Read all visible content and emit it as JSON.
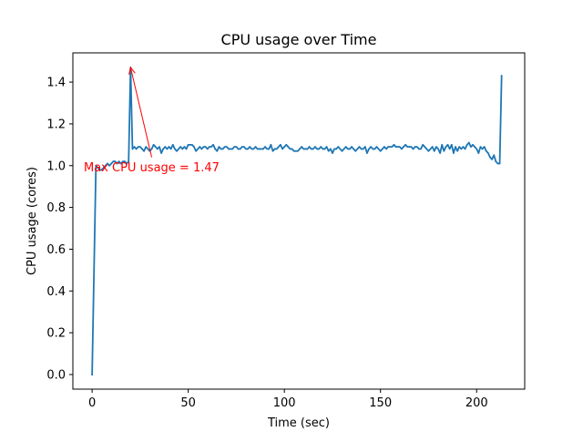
{
  "chart_data": {
    "type": "line",
    "title": "CPU usage over Time",
    "xlabel": "Time (sec)",
    "ylabel": "CPU usage (cores)",
    "xlim": [
      -10,
      225
    ],
    "ylim": [
      -0.07,
      1.54
    ],
    "xticks": [
      0,
      50,
      100,
      150,
      200
    ],
    "xtick_labels": [
      "0",
      "50",
      "100",
      "150",
      "200"
    ],
    "yticks": [
      0.0,
      0.2,
      0.4,
      0.6,
      0.8,
      1.0,
      1.2,
      1.4
    ],
    "ytick_labels": [
      "0.0",
      "0.2",
      "0.4",
      "0.6",
      "0.8",
      "1.0",
      "1.2",
      "1.4"
    ],
    "grid": false,
    "series_color": "#1f77b4",
    "annotation": {
      "text": "Max CPU usage = 1.47",
      "color": "#ff0000",
      "point": [
        20,
        1.47
      ],
      "text_anchor_xy": [
        31,
        1.04
      ]
    },
    "series": [
      {
        "x": [
          0,
          1,
          2,
          3,
          4,
          5,
          6,
          7,
          8,
          9,
          10,
          11,
          12,
          13,
          14,
          15,
          16,
          17,
          18,
          19,
          20,
          21,
          22,
          23,
          24,
          25,
          26,
          27,
          28,
          29,
          30,
          31,
          32,
          33,
          34,
          35,
          36,
          37,
          38,
          39,
          40,
          41,
          42,
          43,
          44,
          45,
          46,
          47,
          48,
          49,
          50,
          51,
          52,
          53,
          54,
          55,
          56,
          57,
          58,
          59,
          60,
          61,
          62,
          63,
          64,
          65,
          66,
          67,
          68,
          69,
          70,
          71,
          72,
          73,
          74,
          75,
          76,
          77,
          78,
          79,
          80,
          81,
          82,
          83,
          84,
          85,
          86,
          87,
          88,
          89,
          90,
          91,
          92,
          93,
          94,
          95,
          96,
          97,
          98,
          99,
          100,
          101,
          102,
          103,
          104,
          105,
          106,
          107,
          108,
          109,
          110,
          111,
          112,
          113,
          114,
          115,
          116,
          117,
          118,
          119,
          120,
          121,
          122,
          123,
          124,
          125,
          126,
          127,
          128,
          129,
          130,
          131,
          132,
          133,
          134,
          135,
          136,
          137,
          138,
          139,
          140,
          141,
          142,
          143,
          144,
          145,
          146,
          147,
          148,
          149,
          150,
          151,
          152,
          153,
          154,
          155,
          156,
          157,
          158,
          159,
          160,
          161,
          162,
          163,
          164,
          165,
          166,
          167,
          168,
          169,
          170,
          171,
          172,
          173,
          174,
          175,
          176,
          177,
          178,
          179,
          180,
          181,
          182,
          183,
          184,
          185,
          186,
          187,
          188,
          189,
          190,
          191,
          192,
          193,
          194,
          195,
          196,
          197,
          198,
          199,
          200,
          201,
          202,
          203,
          204,
          205,
          206,
          207,
          208,
          209,
          210,
          211,
          212,
          213
        ],
        "y": [
          0.0,
          0.5,
          1.0,
          0.99,
          0.98,
          0.98,
          0.99,
          1.0,
          1.01,
          1.0,
          1.01,
          1.02,
          1.02,
          1.01,
          1.02,
          1.01,
          1.02,
          1.02,
          1.01,
          1.02,
          1.47,
          1.08,
          1.09,
          1.08,
          1.09,
          1.09,
          1.08,
          1.07,
          1.09,
          1.08,
          1.07,
          1.08,
          1.1,
          1.09,
          1.08,
          1.09,
          1.06,
          1.08,
          1.09,
          1.08,
          1.09,
          1.08,
          1.1,
          1.08,
          1.07,
          1.08,
          1.09,
          1.08,
          1.09,
          1.08,
          1.1,
          1.1,
          1.1,
          1.09,
          1.07,
          1.08,
          1.09,
          1.08,
          1.09,
          1.09,
          1.08,
          1.09,
          1.09,
          1.1,
          1.08,
          1.07,
          1.09,
          1.08,
          1.08,
          1.09,
          1.09,
          1.08,
          1.08,
          1.08,
          1.09,
          1.09,
          1.08,
          1.08,
          1.09,
          1.09,
          1.08,
          1.08,
          1.09,
          1.08,
          1.08,
          1.09,
          1.08,
          1.08,
          1.08,
          1.08,
          1.09,
          1.08,
          1.08,
          1.1,
          1.07,
          1.08,
          1.08,
          1.09,
          1.1,
          1.08,
          1.09,
          1.1,
          1.09,
          1.08,
          1.08,
          1.07,
          1.07,
          1.07,
          1.08,
          1.09,
          1.08,
          1.08,
          1.08,
          1.09,
          1.08,
          1.08,
          1.09,
          1.08,
          1.08,
          1.09,
          1.08,
          1.08,
          1.09,
          1.07,
          1.08,
          1.06,
          1.08,
          1.08,
          1.09,
          1.08,
          1.07,
          1.08,
          1.09,
          1.08,
          1.08,
          1.09,
          1.08,
          1.07,
          1.08,
          1.09,
          1.08,
          1.08,
          1.09,
          1.06,
          1.08,
          1.09,
          1.08,
          1.08,
          1.09,
          1.08,
          1.07,
          1.08,
          1.09,
          1.08,
          1.09,
          1.09,
          1.09,
          1.1,
          1.09,
          1.09,
          1.09,
          1.08,
          1.09,
          1.1,
          1.09,
          1.09,
          1.09,
          1.08,
          1.09,
          1.09,
          1.08,
          1.08,
          1.1,
          1.09,
          1.08,
          1.07,
          1.08,
          1.09,
          1.07,
          1.09,
          1.08,
          1.06,
          1.1,
          1.07,
          1.09,
          1.1,
          1.08,
          1.1,
          1.06,
          1.09,
          1.07,
          1.09,
          1.08,
          1.09,
          1.08,
          1.1,
          1.11,
          1.09,
          1.1,
          1.09,
          1.08,
          1.06,
          1.09,
          1.08,
          1.09,
          1.07,
          1.06,
          1.04,
          1.03,
          1.05,
          1.02,
          1.01,
          1.01,
          1.43
        ]
      }
    ]
  }
}
